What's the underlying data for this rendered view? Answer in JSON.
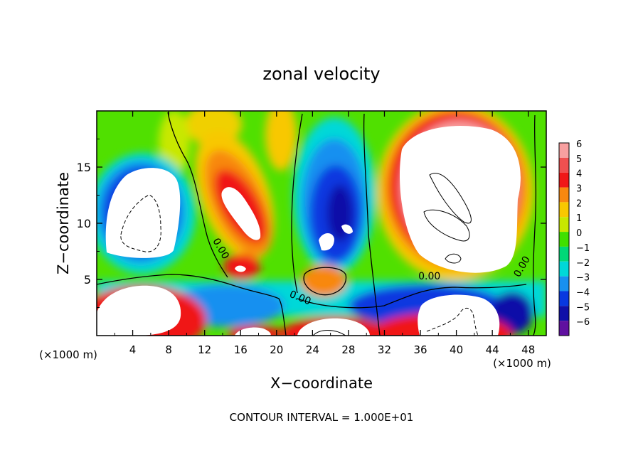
{
  "chart_data": {
    "type": "heatmap",
    "title": "zonal velocity",
    "xlabel": "X−coordinate",
    "ylabel": "Z−coordinate",
    "x_unit_left": "(×1000 m)",
    "x_unit_right": "(×1000 m)",
    "footer": "CONTOUR INTERVAL = 1.000E+01",
    "xlim": [
      0,
      50
    ],
    "ylim": [
      0,
      20
    ],
    "x_ticks": [
      4,
      8,
      12,
      16,
      20,
      24,
      28,
      32,
      36,
      40,
      44,
      48
    ],
    "x_tick_labels": [
      "4",
      "8",
      "12",
      "16",
      "20",
      "24",
      "28",
      "32",
      "36",
      "40",
      "44",
      "48"
    ],
    "y_ticks": [
      5,
      10,
      15
    ],
    "y_tick_labels": [
      "5",
      "10",
      "15"
    ],
    "colorbar": {
      "levels": [
        6,
        5,
        4,
        3,
        2,
        1,
        0,
        -1,
        -2,
        -3,
        -4,
        -5,
        -6
      ],
      "labels": [
        "6",
        "5",
        "4",
        "3",
        "2",
        "1",
        "0",
        "−1",
        "−2",
        "−3",
        "−4",
        "−5",
        "−6"
      ],
      "colors": [
        "#f8a0a0",
        "#f05050",
        "#f01818",
        "#f88810",
        "#f8c800",
        "#c8e800",
        "#40e000",
        "#00d878",
        "#00d8d8",
        "#1890f0",
        "#0838e0",
        "#1010a8",
        "#6010a0"
      ]
    },
    "contour_labels": [
      {
        "text": "0.00",
        "x": 13.5,
        "z": 7.6,
        "rotate": 60
      },
      {
        "text": "0.00",
        "x": 22.5,
        "z": 3.1,
        "rotate": 22
      },
      {
        "text": "0.00",
        "x": 37.0,
        "z": 5.0,
        "rotate": 0
      },
      {
        "text": "0.00",
        "x": 47.6,
        "z": 6.0,
        "rotate": -60
      }
    ]
  }
}
